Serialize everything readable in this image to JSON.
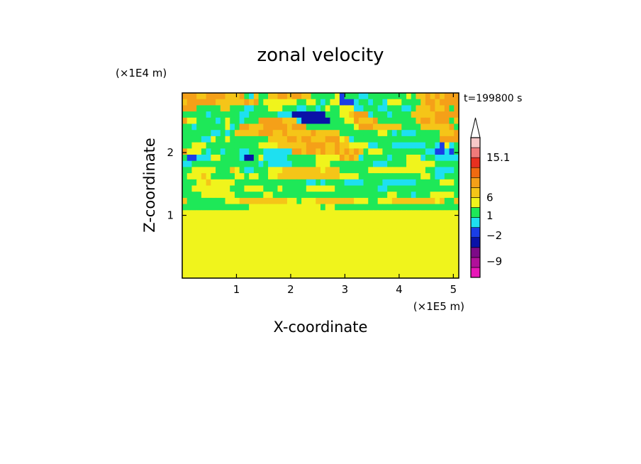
{
  "chart_data": {
    "type": "heatmap",
    "title": "zonal velocity",
    "xlabel": "X-coordinate",
    "ylabel": "Z-coordinate",
    "x_scale_label": "(×1E5 m)",
    "y_scale_label": "(×1E4 m)",
    "time_label": "t=199800 s",
    "xlim": [
      0,
      5.1
    ],
    "ylim": [
      0,
      2.95
    ],
    "x_ticks": [
      "1",
      "2",
      "3",
      "4",
      "5"
    ],
    "y_ticks": [
      "1",
      "2"
    ],
    "colorbar": {
      "labels": [
        "15.1",
        "6",
        "1",
        "−2",
        "−9"
      ],
      "levels_bottom_to_top": [
        {
          "color": "#e817b8"
        },
        {
          "color": "#b0109a"
        },
        {
          "color": "#7d0a88"
        },
        {
          "color": "#0a12a8"
        },
        {
          "color": "#1a3ee6"
        },
        {
          "color": "#1ee0f0"
        },
        {
          "color": "#1ee858"
        },
        {
          "color": "#f0f41c"
        },
        {
          "color": "#f5c518"
        },
        {
          "color": "#f5a018"
        },
        {
          "color": "#f06a10"
        },
        {
          "color": "#e83020"
        },
        {
          "color": "#f07a7a"
        },
        {
          "color": "#f7c8c8"
        }
      ]
    },
    "field_rows_top_to_bottom": [
      "EEEDDEEEEDDDEGCDGGDDEEDEEDDGGGGGFBGGGCCGGGGGGGGFGDDEDEDEEE",
      "DEEEEEEDDDDDDEDEGFFFFFFFGGFFGCGFFBBBCGGCGGCFFFGGGGDEEDEEEE",
      "EEEGGGGGDDGGGCCGGGFFFGGGCCGGCGFGGFFFCCGGGCCGGGCCGDDDEDDEGE",
      "GGGGGCGGGGGGCCGGGGGGCCCAAAAAAAGGGFFDEEECGGGCGGGGDDDDDEEEEE",
      "EFFGGGGCGFGGCGGGEEEEEDDDCAAAAAAGGGFFEDDDEGGGGGGGGDEEDEEEGD",
      "GGCGGGGGGFCGEEDDDEEEEEDEEEGGGGGGGGGGFEEEDDDDDDGGGGDDDDDDEG",
      "GGGGGGCCGCGDDDDDEEEDDEDDDDDEDDDDDGGGGGGGGFFGCGCCCGGGGGDDDE",
      "GGGGCCFGGFGGGGGGGGDDDDEEDEEDDDEEEFDCGGGGGGGGGGGGGGGGGGEEEE",
      "GGFFFGGGGGGGGGGGFFFFDDDDDDEEEEDDEDDFFFFCCGGGCCCCCCCGGCBFCG",
      "EFFFGCGGCGGGCCGGGCCCCCCEEDEEDEDDEDEDEDGFFFGGGGGGGGGCCBBCBG",
      "GBBCCCFFGGGGCAAGFCCCCCGGGGGGFFFFFEDEDCGGGGGCGGGFFFCGGCCCCC",
      "CCGGGGGGGGGGGGGGCGCCCCCGGGGGFFFGGGGGGGGGCCCGGGGFFFFFFGGGGG",
      "GGFFFFFGGGDFGCCGGGFFFDDDDDDDDFDDDGGGGGGFFFFFFFFFFFFGGCCCCG",
      "GFFFDFGGGGGFFGFFGGFFDDDDDDDDDDDDDFFFFGGGGGGGGGGGGGFFGCCGGG",
      "GGGFFDFFFFFGGGGGGGGGGGGGGGCCGCGGGGCCCCGGGGCCCCCCCGGGGGFFFG",
      "GGFFFFFFFFGGGFFFFGGGFGGGGGFFFFFFGGGGGGGGGCCGGGGGGGGGGGGGGG",
      "GGGGFFFFFFFGGGGGGFFGGGGGGGGGGGGGGGGGGGGGGGGFFGGGCGGGFFFFFG",
      "DGGGGGGGGFFFDDDDDDDDDDFFGFFFDDDDDDDDFFFGGFFFDDDDDDDDDFDGGD",
      "GGGGGGGGGGGGGGFFFFFFFFFFFFFFFGFFGGGGGGGGGGGGGGGGGGGGGGGGGG",
      "FFFFFFFFFFFFFFFFFFFFFFFFFFFFFFFFFFFFFFFFFFFFFFFFFFFFFFFFFF",
      "FFFFFFFFFFFFFFFFFFFFFFFFFFFFFFFFFFFFFFFFFFFFFFFFFFFFFFFFFF",
      "FFFFFFFFFFFFFFFFFFFFFFFFFFFFFFFFFFFFFFFFFFFFFFFFFFFFFFFFFF",
      "FFFFFFFFFFFFFFFFFFFFFFFFFFFFFFFFFFFFFFFFFFFFFFFFFFFFFFFFFF",
      "FFFFFFFFFFFFFFFFFFFFFFFFFFFFFFFFFFFFFFFFFFFFFFFFFFFFFFFFFF",
      "FFFFFFFFFFFFFFFFFFFFFFFFFFFFFFFFFFFFFFFFFFFFFFFFFFFFFFFFFF",
      "FFFFFFFFFFFFFFFFFFFFFFFFFFFFFFFFFFFFFFFFFFFFFFFFFFFFFFFFFF",
      "FFFFFFFFFFFFFFFFFFFFFFFFFFFFFFFFFFFFFFFFFFFFFFFFFFFFFFFFFF",
      "FFFFFFFFFFFFFFFFFFFFFFFFFFFFFFFFFFFFFFFFFFFFFFFFFFFFFFFFFF",
      "FFFFFFFFFFFFFFFFFFFFFFFFFFFFFFFFFFFFFFFFFFFFFFFFFFFFFFFFFF",
      "FFFFFFFFFFFFFFFFFFFFFFFFFFFFFFFFFFFFFFFFFFFFFFFFFFFFFFFFFF"
    ],
    "field_legend": {
      "A": "#0a12a8",
      "B": "#1a3ee6",
      "C": "#1ee0f0",
      "D": "#f5c518",
      "E": "#f5a018",
      "F": "#f0f41c",
      "G": "#1ee858"
    }
  }
}
